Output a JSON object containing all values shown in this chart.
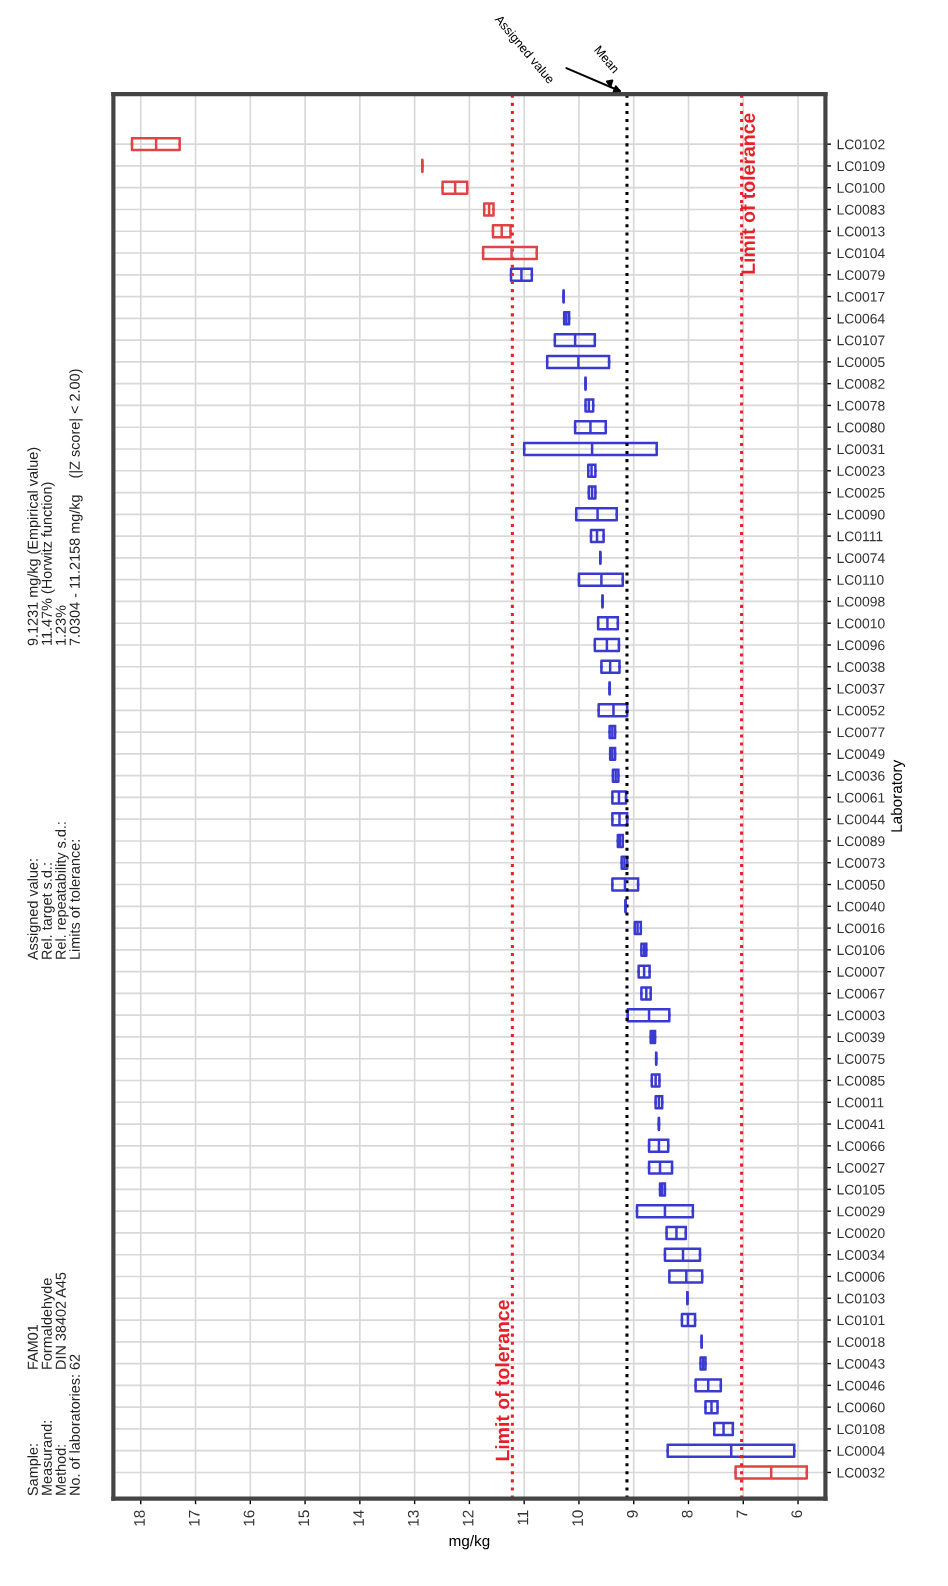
{
  "chart_data": {
    "type": "box",
    "orientation": "horizontal",
    "xlabel": "mg/kg",
    "ylabel": "Laboratory",
    "categories": [
      "LC0102",
      "LC0109",
      "LC0100",
      "LC0083",
      "LC0013",
      "LC0104",
      "LC0079",
      "LC0017",
      "LC0064",
      "LC0107",
      "LC0005",
      "LC0082",
      "LC0078",
      "LC0080",
      "LC0031",
      "LC0023",
      "LC0025",
      "LC0090",
      "LC0111",
      "LC0074",
      "LC0110",
      "LC0098",
      "LC0010",
      "LC0096",
      "LC0038",
      "LC0037",
      "LC0052",
      "LC0077",
      "LC0049",
      "LC0036",
      "LC0061",
      "LC0044",
      "LC0089",
      "LC0073",
      "LC0050",
      "LC0040",
      "LC0016",
      "LC0106",
      "LC0007",
      "LC0067",
      "LC0003",
      "LC0039",
      "LC0075",
      "LC0085",
      "LC0011",
      "LC0041",
      "LC0066",
      "LC0027",
      "LC0105",
      "LC0029",
      "LC0020",
      "LC0034",
      "LC0006",
      "LC0103",
      "LC0101",
      "LC0018",
      "LC0043",
      "LC0046",
      "LC0060",
      "LC0108",
      "LC0004",
      "LC0032"
    ],
    "boxes": [
      {
        "low": 17.29,
        "q1": 17.29,
        "median": 17.72,
        "q3": 18.16,
        "high": 18.16
      },
      {
        "low": 12.86,
        "q1": 12.86,
        "median": 12.86,
        "q3": 12.86,
        "high": 12.86
      },
      {
        "low": 12.04,
        "q1": 12.04,
        "median": 12.26,
        "q3": 12.49,
        "high": 12.49
      },
      {
        "low": 11.56,
        "q1": 11.56,
        "median": 11.64,
        "q3": 11.73,
        "high": 11.73
      },
      {
        "low": 11.25,
        "q1": 11.25,
        "median": 11.41,
        "q3": 11.57,
        "high": 11.57
      },
      {
        "low": 10.77,
        "q1": 10.77,
        "median": 11.23,
        "q3": 11.75,
        "high": 11.75
      },
      {
        "low": 10.86,
        "q1": 10.86,
        "median": 11.05,
        "q3": 11.24,
        "high": 11.24
      },
      {
        "low": 10.28,
        "q1": 10.28,
        "median": 10.28,
        "q3": 10.28,
        "high": 10.28
      },
      {
        "low": 10.18,
        "q1": 10.18,
        "median": 10.23,
        "q3": 10.27,
        "high": 10.27
      },
      {
        "low": 9.71,
        "q1": 9.71,
        "median": 10.07,
        "q3": 10.44,
        "high": 10.44
      },
      {
        "low": 9.45,
        "q1": 9.45,
        "median": 10.01,
        "q3": 10.58,
        "high": 10.58
      },
      {
        "low": 9.88,
        "q1": 9.88,
        "median": 9.88,
        "q3": 9.88,
        "high": 9.88
      },
      {
        "low": 9.74,
        "q1": 9.74,
        "median": 9.82,
        "q3": 9.88,
        "high": 9.88
      },
      {
        "low": 9.51,
        "q1": 9.51,
        "median": 9.79,
        "q3": 10.07,
        "high": 10.07
      },
      {
        "low": 8.58,
        "q1": 8.58,
        "median": 9.76,
        "q3": 11.0,
        "high": 11.0
      },
      {
        "low": 9.7,
        "q1": 9.7,
        "median": 9.77,
        "q3": 9.83,
        "high": 9.83
      },
      {
        "low": 9.7,
        "q1": 9.7,
        "median": 9.76,
        "q3": 9.82,
        "high": 9.82
      },
      {
        "low": 9.31,
        "q1": 9.31,
        "median": 9.66,
        "q3": 10.05,
        "high": 10.05
      },
      {
        "low": 9.55,
        "q1": 9.55,
        "median": 9.67,
        "q3": 9.78,
        "high": 9.78
      },
      {
        "low": 9.61,
        "q1": 9.61,
        "median": 9.61,
        "q3": 9.61,
        "high": 9.61
      },
      {
        "low": 9.2,
        "q1": 9.2,
        "median": 9.59,
        "q3": 10.0,
        "high": 10.0
      },
      {
        "low": 9.57,
        "q1": 9.57,
        "median": 9.57,
        "q3": 9.57,
        "high": 9.57
      },
      {
        "low": 9.29,
        "q1": 9.29,
        "median": 9.48,
        "q3": 9.65,
        "high": 9.65
      },
      {
        "low": 9.27,
        "q1": 9.27,
        "median": 9.49,
        "q3": 9.71,
        "high": 9.71
      },
      {
        "low": 9.26,
        "q1": 9.26,
        "median": 9.43,
        "q3": 9.59,
        "high": 9.59
      },
      {
        "low": 9.44,
        "q1": 9.44,
        "median": 9.44,
        "q3": 9.44,
        "high": 9.44
      },
      {
        "low": 9.12,
        "q1": 9.12,
        "median": 9.37,
        "q3": 9.64,
        "high": 9.64
      },
      {
        "low": 9.34,
        "q1": 9.34,
        "median": 9.39,
        "q3": 9.44,
        "high": 9.44
      },
      {
        "low": 9.34,
        "q1": 9.34,
        "median": 9.39,
        "q3": 9.43,
        "high": 9.43
      },
      {
        "low": 9.28,
        "q1": 9.28,
        "median": 9.33,
        "q3": 9.38,
        "high": 9.38
      },
      {
        "low": 9.14,
        "q1": 9.14,
        "median": 9.27,
        "q3": 9.39,
        "high": 9.39
      },
      {
        "low": 9.12,
        "q1": 9.12,
        "median": 9.26,
        "q3": 9.39,
        "high": 9.39
      },
      {
        "low": 9.2,
        "q1": 9.2,
        "median": 9.25,
        "q3": 9.29,
        "high": 9.29
      },
      {
        "low": 9.12,
        "q1": 9.12,
        "median": 9.17,
        "q3": 9.22,
        "high": 9.22
      },
      {
        "low": 8.92,
        "q1": 8.92,
        "median": 9.16,
        "q3": 9.39,
        "high": 9.39
      },
      {
        "low": 9.15,
        "q1": 9.15,
        "median": 9.15,
        "q3": 9.15,
        "high": 9.15
      },
      {
        "low": 8.87,
        "q1": 8.87,
        "median": 8.93,
        "q3": 8.98,
        "high": 8.98
      },
      {
        "low": 8.77,
        "q1": 8.77,
        "median": 8.81,
        "q3": 8.86,
        "high": 8.86
      },
      {
        "low": 8.71,
        "q1": 8.71,
        "median": 8.81,
        "q3": 8.91,
        "high": 8.91
      },
      {
        "low": 8.69,
        "q1": 8.69,
        "median": 8.77,
        "q3": 8.86,
        "high": 8.86
      },
      {
        "low": 8.35,
        "q1": 8.35,
        "median": 8.72,
        "q3": 9.11,
        "high": 9.11
      },
      {
        "low": 8.61,
        "q1": 8.61,
        "median": 8.65,
        "q3": 8.69,
        "high": 8.69
      },
      {
        "low": 8.59,
        "q1": 8.59,
        "median": 8.59,
        "q3": 8.59,
        "high": 8.59
      },
      {
        "low": 8.53,
        "q1": 8.53,
        "median": 8.6,
        "q3": 8.67,
        "high": 8.67
      },
      {
        "low": 8.48,
        "q1": 8.48,
        "median": 8.54,
        "q3": 8.6,
        "high": 8.6
      },
      {
        "low": 8.54,
        "q1": 8.54,
        "median": 8.54,
        "q3": 8.54,
        "high": 8.54
      },
      {
        "low": 8.37,
        "q1": 8.37,
        "median": 8.54,
        "q3": 8.72,
        "high": 8.72
      },
      {
        "low": 8.3,
        "q1": 8.3,
        "median": 8.52,
        "q3": 8.72,
        "high": 8.72
      },
      {
        "low": 8.43,
        "q1": 8.43,
        "median": 8.48,
        "q3": 8.52,
        "high": 8.52
      },
      {
        "low": 7.92,
        "q1": 7.92,
        "median": 8.43,
        "q3": 8.94,
        "high": 8.94
      },
      {
        "low": 8.05,
        "q1": 8.05,
        "median": 8.22,
        "q3": 8.4,
        "high": 8.4
      },
      {
        "low": 7.79,
        "q1": 7.79,
        "median": 8.1,
        "q3": 8.43,
        "high": 8.43
      },
      {
        "low": 7.75,
        "q1": 7.75,
        "median": 8.04,
        "q3": 8.35,
        "high": 8.35
      },
      {
        "low": 8.02,
        "q1": 8.02,
        "median": 8.02,
        "q3": 8.02,
        "high": 8.02
      },
      {
        "low": 7.88,
        "q1": 7.88,
        "median": 8.01,
        "q3": 8.12,
        "high": 8.12
      },
      {
        "low": 7.76,
        "q1": 7.76,
        "median": 7.76,
        "q3": 7.76,
        "high": 7.76
      },
      {
        "low": 7.69,
        "q1": 7.69,
        "median": 7.73,
        "q3": 7.78,
        "high": 7.78
      },
      {
        "low": 7.41,
        "q1": 7.41,
        "median": 7.64,
        "q3": 7.87,
        "high": 7.87
      },
      {
        "low": 7.47,
        "q1": 7.47,
        "median": 7.58,
        "q3": 7.69,
        "high": 7.69
      },
      {
        "low": 7.19,
        "q1": 7.19,
        "median": 7.36,
        "q3": 7.53,
        "high": 7.53
      },
      {
        "low": 6.07,
        "q1": 6.07,
        "median": 7.22,
        "q3": 8.38,
        "high": 8.38
      },
      {
        "low": 5.84,
        "q1": 5.84,
        "median": 6.49,
        "q3": 7.14,
        "high": 7.14
      }
    ],
    "colors": [
      "#e04444",
      "#e04444",
      "#e04444",
      "#e04444",
      "#e04444",
      "#e04444",
      "#3a3ad0",
      "#3a3ad0",
      "#3a3ad0",
      "#3a3ad0",
      "#3a3ad0",
      "#3a3ad0",
      "#3a3ad0",
      "#3a3ad0",
      "#3a3ad0",
      "#3a3ad0",
      "#3a3ad0",
      "#3a3ad0",
      "#3a3ad0",
      "#3a3ad0",
      "#3a3ad0",
      "#3a3ad0",
      "#3a3ad0",
      "#3a3ad0",
      "#3a3ad0",
      "#3a3ad0",
      "#3a3ad0",
      "#3a3ad0",
      "#3a3ad0",
      "#3a3ad0",
      "#3a3ad0",
      "#3a3ad0",
      "#3a3ad0",
      "#3a3ad0",
      "#3a3ad0",
      "#3a3ad0",
      "#3a3ad0",
      "#3a3ad0",
      "#3a3ad0",
      "#3a3ad0",
      "#3a3ad0",
      "#3a3ad0",
      "#3a3ad0",
      "#3a3ad0",
      "#3a3ad0",
      "#3a3ad0",
      "#3a3ad0",
      "#3a3ad0",
      "#3a3ad0",
      "#3a3ad0",
      "#3a3ad0",
      "#3a3ad0",
      "#3a3ad0",
      "#3a3ad0",
      "#3a3ad0",
      "#3a3ad0",
      "#3a3ad0",
      "#3a3ad0",
      "#3a3ad0",
      "#3a3ad0",
      "#3a3ad0",
      "#e04444"
    ],
    "xlim": [
      18.5,
      5.5
    ],
    "xticks": [
      18,
      17,
      16,
      15,
      14,
      13,
      12,
      11,
      10,
      9,
      8,
      7,
      6
    ],
    "grid": true,
    "ref_lines": [
      {
        "axis": "x",
        "value": 11.2158,
        "label": "Limit of tolerance",
        "color": "#e8202a",
        "line_style": "dotted"
      },
      {
        "axis": "x",
        "value": 9.1231,
        "label": "Assigned value",
        "color": "#000000",
        "line_style": "dotted"
      },
      {
        "axis": "x",
        "value": 7.0304,
        "label": "Limit of tolerance",
        "color": "#e8202a",
        "line_style": "dotted"
      }
    ],
    "annotations": [
      "Mean",
      "Sample:\nMeasurand:\nMethod:\nNo. of laboratories:",
      "FAM01\nFormaldehyde\nDIN 38402 A45\n62",
      "Assigned value:\nRel. target s.d.:\nRel. repeatability s.d.:\nLimits of tolerance:",
      "9.1231 mg/kg (Empirical value)\n11.47% (Horwitz function)\n1.23%\n7.0304 - 11.2158 mg/kg    (|Z score| < 2.00)"
    ]
  }
}
